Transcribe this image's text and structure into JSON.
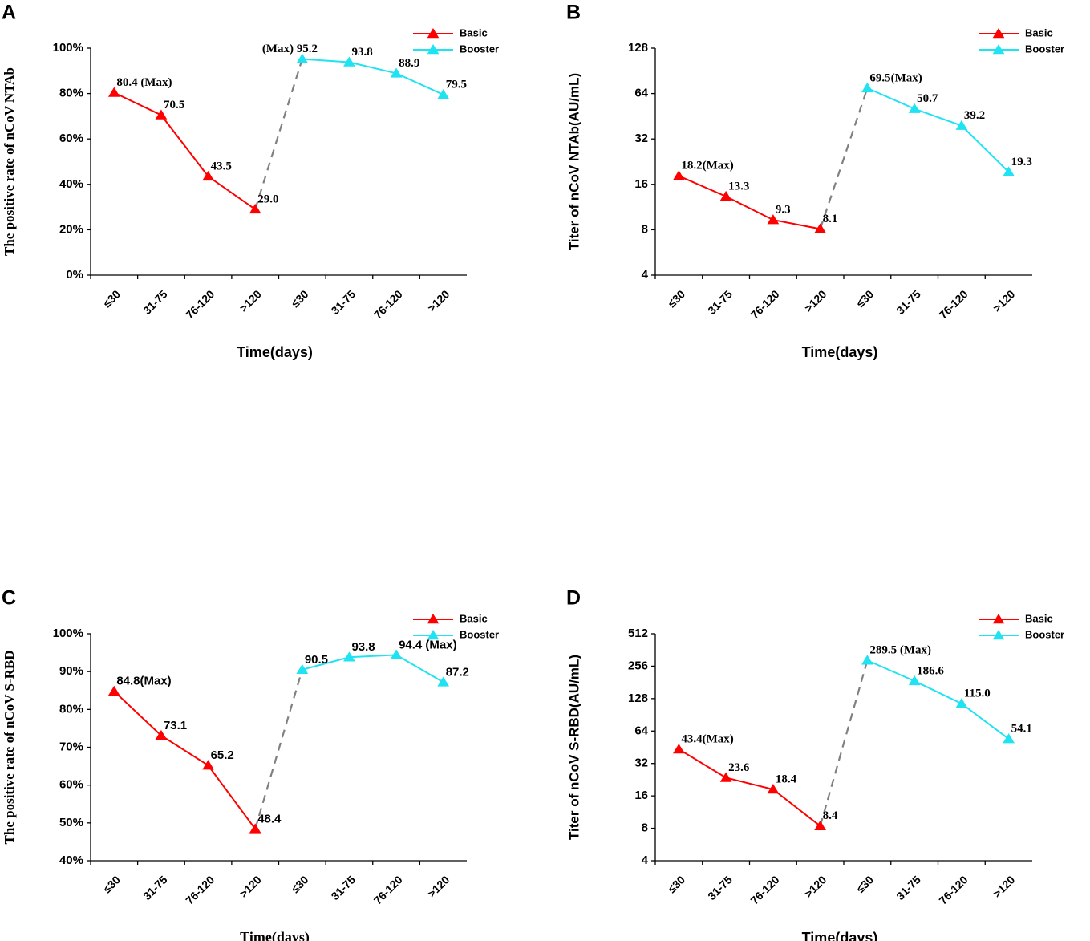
{
  "chart_data": [
    {
      "type": "line",
      "panel_label": "A",
      "y_label": "The positive rate of nCoV NTAb",
      "x_label": "Time(days)",
      "categories": [
        "≤30",
        "31-75",
        "76-120",
        ">120",
        "≤30",
        "31-75",
        "76-120",
        ">120"
      ],
      "series": [
        {
          "name": "Basic",
          "color": "#ff0000",
          "values": [
            80.4,
            70.5,
            43.5,
            29.0,
            null,
            null,
            null,
            null
          ],
          "value_labels": [
            "80.4 (Max)",
            "70.5",
            "43.5",
            "29.0",
            null,
            null,
            null,
            null
          ]
        },
        {
          "name": "Booster",
          "color": "#1fe3f2",
          "values": [
            null,
            null,
            null,
            null,
            95.2,
            93.8,
            88.9,
            79.5
          ],
          "value_labels": [
            null,
            null,
            null,
            null,
            "(Max) 95.2",
            "93.8",
            "88.9",
            "79.5"
          ]
        }
      ],
      "ylim": [
        0,
        100
      ],
      "yticks": [
        {
          "value": 0,
          "label": "0%"
        },
        {
          "value": 20,
          "label": "20%"
        },
        {
          "value": 40,
          "label": "40%"
        },
        {
          "value": 60,
          "label": "60%"
        },
        {
          "value": 80,
          "label": "80%"
        },
        {
          "value": 100,
          "label": "100%"
        }
      ],
      "legend": "upper right"
    },
    {
      "type": "line",
      "panel_label": "B",
      "y_label": "Titer of nCoV NTAb(AU/mL)",
      "x_label": "Time(days)",
      "categories": [
        "≤30",
        "31-75",
        "76-120",
        ">120",
        "≤30",
        "31-75",
        "76-120",
        ">120"
      ],
      "series": [
        {
          "name": "Basic",
          "color": "#ff0000",
          "values": [
            18.2,
            13.3,
            9.3,
            8.1,
            null,
            null,
            null,
            null
          ],
          "value_labels": [
            "18.2(Max)",
            "13.3",
            "9.3",
            "8.1",
            null,
            null,
            null,
            null
          ]
        },
        {
          "name": "Booster",
          "color": "#1fe3f2",
          "values": [
            null,
            null,
            null,
            null,
            69.5,
            50.7,
            39.2,
            19.3
          ],
          "value_labels": [
            null,
            null,
            null,
            null,
            "69.5(Max)",
            "50.7",
            "39.2",
            "19.3"
          ]
        }
      ],
      "yscale": "log",
      "ylim": [
        4,
        128
      ],
      "yticks": [
        4,
        8,
        16,
        32,
        64,
        128
      ],
      "legend": "upper right"
    },
    {
      "type": "line",
      "panel_label": "C",
      "y_label": "The positive rate of nCoV S-RBD",
      "x_label": "Time(days)",
      "categories": [
        "≤30",
        "31-75",
        "76-120",
        ">120",
        "≤30",
        "31-75",
        "76-120",
        ">120"
      ],
      "series": [
        {
          "name": "Basic",
          "color": "#ff0000",
          "values": [
            84.8,
            73.1,
            65.2,
            48.4,
            null,
            null,
            null,
            null
          ],
          "value_labels": [
            "84.8(Max)",
            "73.1",
            "65.2",
            "48.4",
            null,
            null,
            null,
            null
          ]
        },
        {
          "name": "Booster",
          "color": "#1fe3f2",
          "values": [
            null,
            null,
            null,
            null,
            90.5,
            93.8,
            94.4,
            87.2
          ],
          "value_labels": [
            null,
            null,
            null,
            null,
            "90.5",
            "93.8",
            "94.4 (Max)",
            "87.2"
          ]
        }
      ],
      "ylim": [
        40,
        100
      ],
      "yticks": [
        {
          "value": 40,
          "label": "40%"
        },
        {
          "value": 50,
          "label": "50%"
        },
        {
          "value": 60,
          "label": "60%"
        },
        {
          "value": 70,
          "label": "70%"
        },
        {
          "value": 80,
          "label": "80%"
        },
        {
          "value": 90,
          "label": "90%"
        },
        {
          "value": 100,
          "label": "100%"
        }
      ],
      "legend": "upper right"
    },
    {
      "type": "line",
      "panel_label": "D",
      "y_label": "Titer of nCoV S-RBD(AU/mL)",
      "x_label": "Time(days)",
      "categories": [
        "≤30",
        "31-75",
        "76-120",
        ">120",
        "≤30",
        "31-75",
        "76-120",
        ">120"
      ],
      "series": [
        {
          "name": "Basic",
          "color": "#ff0000",
          "values": [
            43.4,
            23.6,
            18.4,
            8.4,
            null,
            null,
            null,
            null
          ],
          "value_labels": [
            "43.4(Max)",
            "23.6",
            "18.4",
            "8.4",
            null,
            null,
            null,
            null
          ]
        },
        {
          "name": "Booster",
          "color": "#1fe3f2",
          "values": [
            null,
            null,
            null,
            null,
            289.5,
            186.6,
            115.0,
            54.1
          ],
          "value_labels": [
            null,
            null,
            null,
            null,
            "289.5 (Max)",
            "186.6",
            "115.0",
            "54.1"
          ]
        }
      ],
      "yscale": "log",
      "ylim": [
        4,
        512
      ],
      "yticks": [
        4,
        8,
        16,
        32,
        64,
        128,
        256,
        512
      ],
      "legend": "upper right"
    }
  ]
}
